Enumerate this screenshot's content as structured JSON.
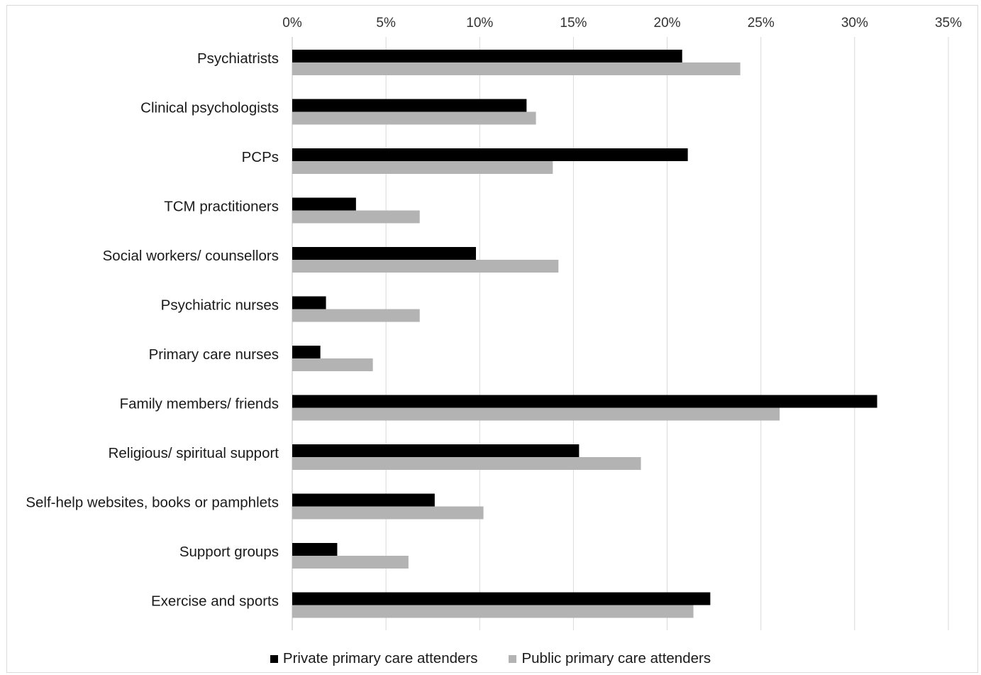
{
  "chart_data": {
    "type": "bar",
    "orientation": "horizontal",
    "title": "",
    "xlabel": "",
    "ylabel": "",
    "xlim": [
      0,
      35
    ],
    "x_ticks": [
      "0%",
      "5%",
      "10%",
      "15%",
      "20%",
      "25%",
      "30%",
      "35%"
    ],
    "x_axis_position": "top",
    "grid": true,
    "legend_position": "bottom",
    "categories": [
      "Psychiatrists",
      "Clinical psychologists",
      "PCPs",
      "TCM practitioners",
      "Social workers/ counsellors",
      "Psychiatric nurses",
      "Primary care nurses",
      "Family members/ friends",
      "Religious/ spiritual support",
      "Self-help websites, books or pamphlets",
      "Support groups",
      "Exercise and sports"
    ],
    "series": [
      {
        "name": "Private primary care attenders",
        "color": "#000000",
        "values": [
          20.8,
          12.5,
          21.1,
          3.4,
          9.8,
          1.8,
          1.5,
          31.2,
          15.3,
          7.6,
          2.4,
          22.3
        ]
      },
      {
        "name": "Public primary care attenders",
        "color": "#b3b3b3",
        "values": [
          23.9,
          13.0,
          13.9,
          6.8,
          14.2,
          6.8,
          4.3,
          26.0,
          18.6,
          10.2,
          6.2,
          21.4
        ]
      }
    ]
  }
}
